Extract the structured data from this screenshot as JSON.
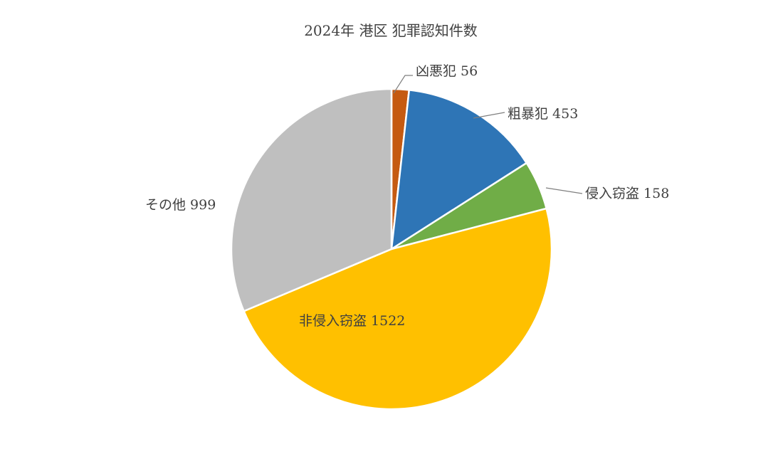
{
  "chart_data": {
    "type": "pie",
    "title": "2024年 港区 犯罪認知件数",
    "start": "top",
    "direction": "clockwise",
    "legend": "none",
    "slices": [
      {
        "label": "凶悪犯",
        "value": 56,
        "color": "#C55A11",
        "display": "凶悪犯 56"
      },
      {
        "label": "粗暴犯",
        "value": 453,
        "color": "#2E75B6",
        "display": "粗暴犯 453"
      },
      {
        "label": "侵入窃盗",
        "value": 158,
        "color": "#70AD47",
        "display": "侵入窃盗 158"
      },
      {
        "label": "非侵入窃盗",
        "value": 1522,
        "color": "#FFC000",
        "display": "非侵入窃盗 1522"
      },
      {
        "label": "その他",
        "value": 999,
        "color": "#BFBFBF",
        "display": "その他 999"
      }
    ]
  }
}
